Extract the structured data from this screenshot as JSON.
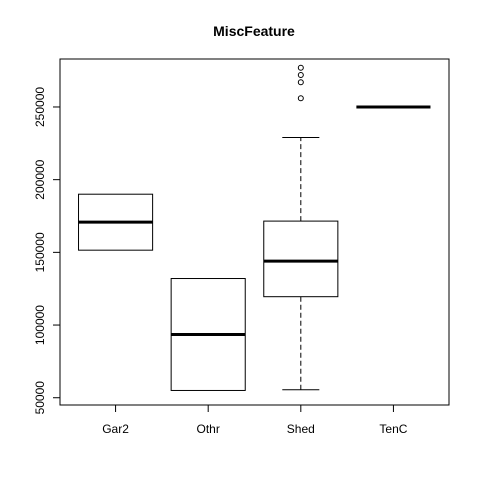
{
  "chart_data": {
    "type": "boxplot",
    "title": "MiscFeature",
    "xlabel": "",
    "ylabel": "",
    "categories": [
      "Gar2",
      "Othr",
      "Shed",
      "TenC"
    ],
    "ylim": [
      45000,
      283000
    ],
    "yticks": [
      50000,
      100000,
      150000,
      200000,
      250000
    ],
    "ytick_labels": [
      "50000",
      "100000",
      "150000",
      "200000",
      "250000"
    ],
    "boxes": [
      {
        "category": "Gar2",
        "q1": 151500,
        "median": 170750,
        "q3": 190000,
        "whisker_low": 151500,
        "whisker_high": 190000,
        "outliers": []
      },
      {
        "category": "Othr",
        "q1": 55000,
        "median": 93500,
        "q3": 132000,
        "whisker_low": 55000,
        "whisker_high": 132000,
        "outliers": []
      },
      {
        "category": "Shed",
        "q1": 119500,
        "median": 144000,
        "q3": 171500,
        "whisker_low": 55500,
        "whisker_high": 229000,
        "outliers": [
          256000,
          267000,
          272000,
          277000
        ]
      },
      {
        "category": "TenC",
        "q1": 250000,
        "median": 250000,
        "q3": 250000,
        "whisker_low": 250000,
        "whisker_high": 250000,
        "outliers": []
      }
    ],
    "grid": false,
    "legend": "none"
  }
}
